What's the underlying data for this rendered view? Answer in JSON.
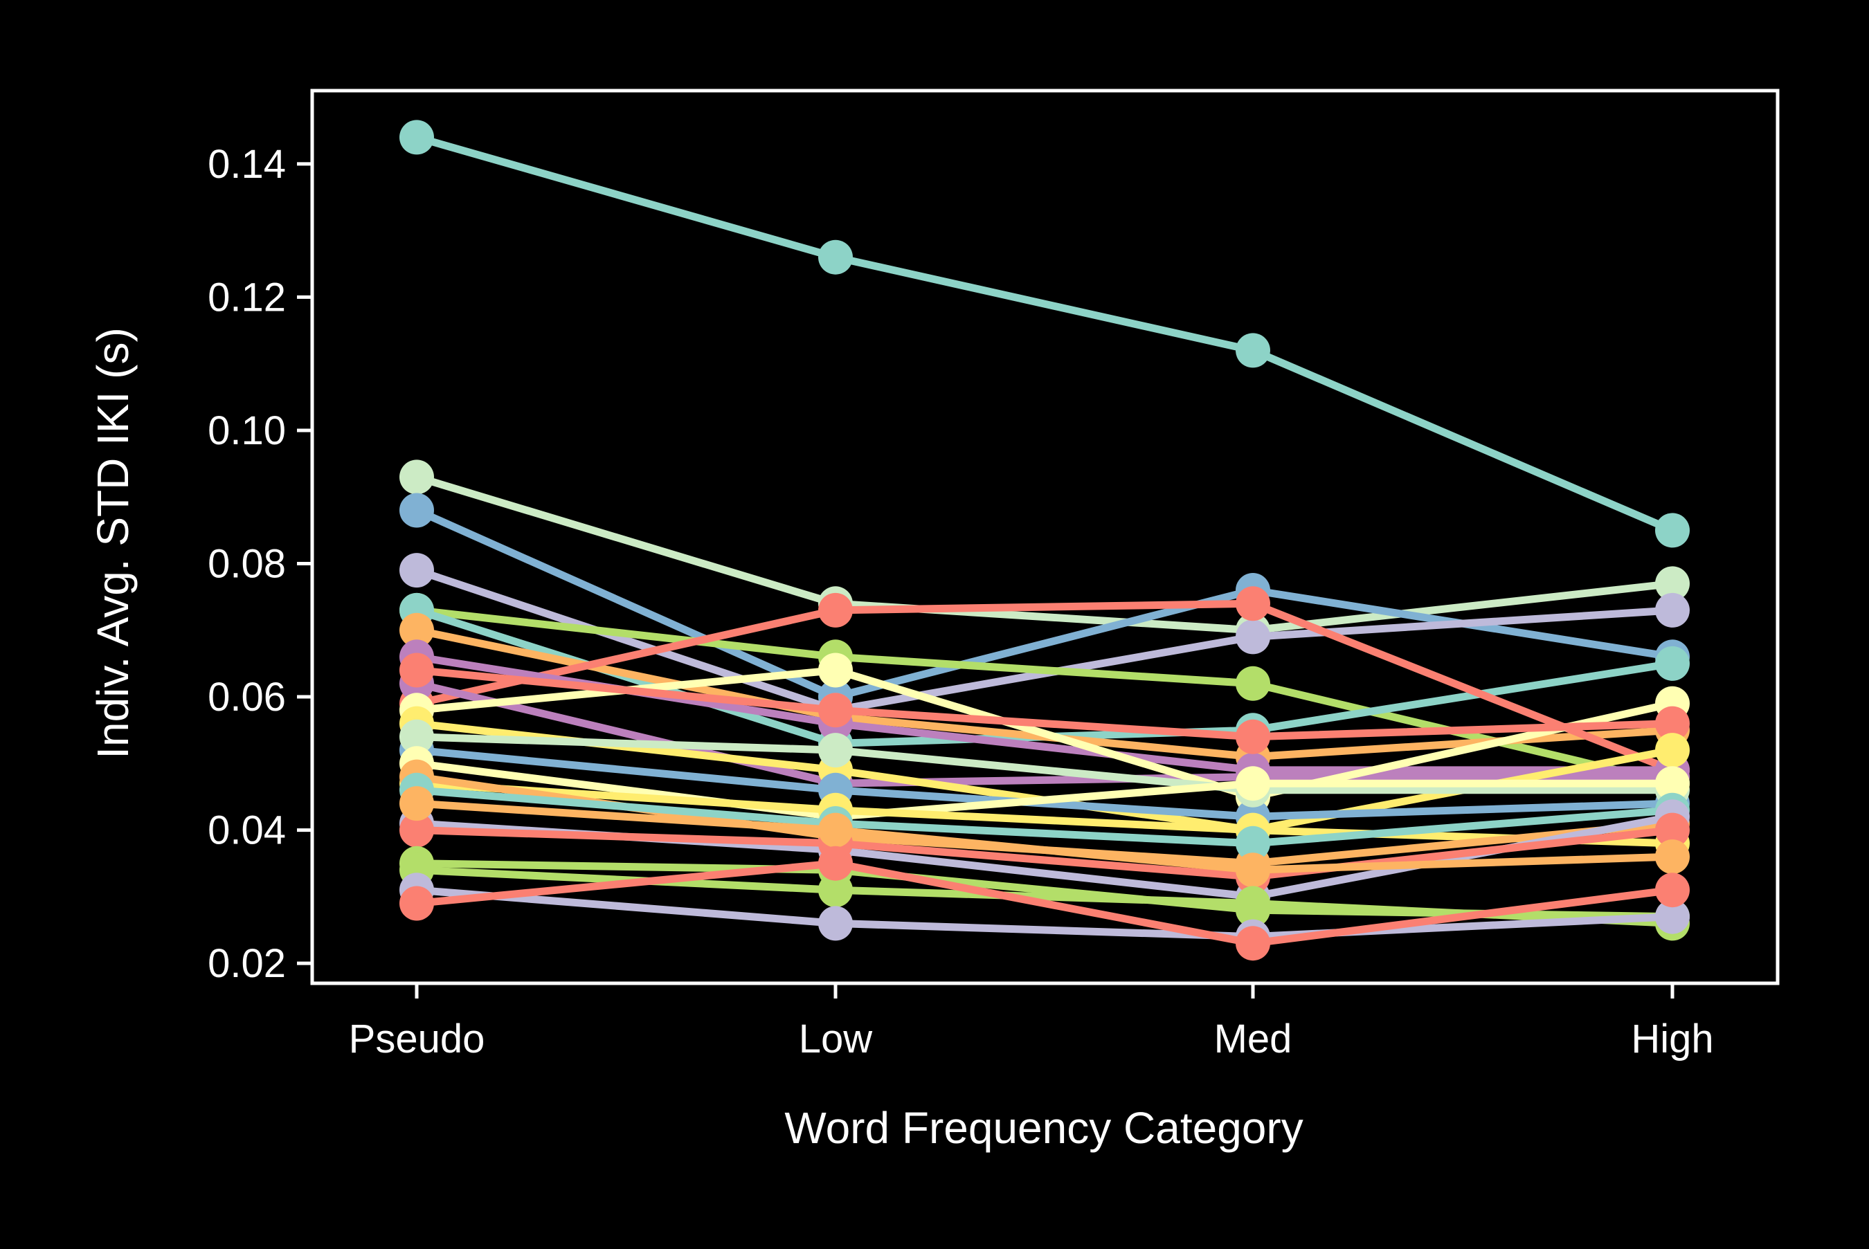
{
  "chart_data": {
    "type": "line",
    "title": "",
    "xlabel": "Word Frequency Category",
    "ylabel": "Indiv. Avg. STD IKI (s)",
    "categories": [
      "Pseudo",
      "Low",
      "Med",
      "High"
    ],
    "yticks": [
      "0.02",
      "0.04",
      "0.06",
      "0.08",
      "0.10",
      "0.12",
      "0.14"
    ],
    "ylim": [
      0.017,
      0.151
    ],
    "grid": false,
    "legend": "none",
    "background": "#000000",
    "axis_color": "#ffffff",
    "series": [
      {
        "color": "#8dd3c7",
        "values": [
          0.144,
          0.126,
          0.112,
          0.085
        ]
      },
      {
        "color": "#ccebc5",
        "values": [
          0.093,
          0.074,
          0.07,
          0.077
        ]
      },
      {
        "color": "#80b1d3",
        "values": [
          0.088,
          0.06,
          0.076,
          0.066
        ]
      },
      {
        "color": "#bebada",
        "values": [
          0.079,
          0.058,
          0.069,
          0.073
        ]
      },
      {
        "color": "#b3de69",
        "values": [
          0.073,
          0.066,
          0.062,
          0.047
        ]
      },
      {
        "color": "#8dd3c7",
        "values": [
          0.073,
          0.053,
          0.055,
          0.065
        ]
      },
      {
        "color": "#fdb462",
        "values": [
          0.07,
          0.057,
          0.051,
          0.055
        ]
      },
      {
        "color": "#fb8072",
        "values": [
          0.059,
          0.073,
          0.074,
          0.049
        ]
      },
      {
        "color": "#bc80bd",
        "values": [
          0.066,
          0.056,
          0.049,
          0.049
        ]
      },
      {
        "color": "#bc80bd",
        "values": [
          0.062,
          0.047,
          0.048,
          0.048
        ]
      },
      {
        "color": "#ffffb3",
        "values": [
          0.058,
          0.064,
          0.045,
          0.059
        ]
      },
      {
        "color": "#fb8072",
        "values": [
          0.064,
          0.058,
          0.054,
          0.056
        ]
      },
      {
        "color": "#ffed6f",
        "values": [
          0.056,
          0.049,
          0.04,
          0.052
        ]
      },
      {
        "color": "#80b1d3",
        "values": [
          0.052,
          0.046,
          0.042,
          0.044
        ]
      },
      {
        "color": "#ccebc5",
        "values": [
          0.054,
          0.052,
          0.046,
          0.046
        ]
      },
      {
        "color": "#ffffb3",
        "values": [
          0.05,
          0.042,
          0.047,
          0.047
        ]
      },
      {
        "color": "#ffed6f",
        "values": [
          0.047,
          0.043,
          0.04,
          0.038
        ]
      },
      {
        "color": "#fdb462",
        "values": [
          0.048,
          0.039,
          0.035,
          0.041
        ]
      },
      {
        "color": "#8dd3c7",
        "values": [
          0.046,
          0.041,
          0.038,
          0.043
        ]
      },
      {
        "color": "#bebada",
        "values": [
          0.041,
          0.037,
          0.03,
          0.042
        ]
      },
      {
        "color": "#fb8072",
        "values": [
          0.04,
          0.038,
          0.033,
          0.04
        ]
      },
      {
        "color": "#fdb462",
        "values": [
          0.044,
          0.04,
          0.034,
          0.036
        ]
      },
      {
        "color": "#b3de69",
        "values": [
          0.035,
          0.034,
          0.028,
          0.027
        ]
      },
      {
        "color": "#b3de69",
        "values": [
          0.034,
          0.031,
          0.029,
          0.026
        ]
      },
      {
        "color": "#bebada",
        "values": [
          0.031,
          0.026,
          0.024,
          0.027
        ]
      },
      {
        "color": "#fb8072",
        "values": [
          0.029,
          0.035,
          0.023,
          0.031
        ]
      }
    ]
  }
}
